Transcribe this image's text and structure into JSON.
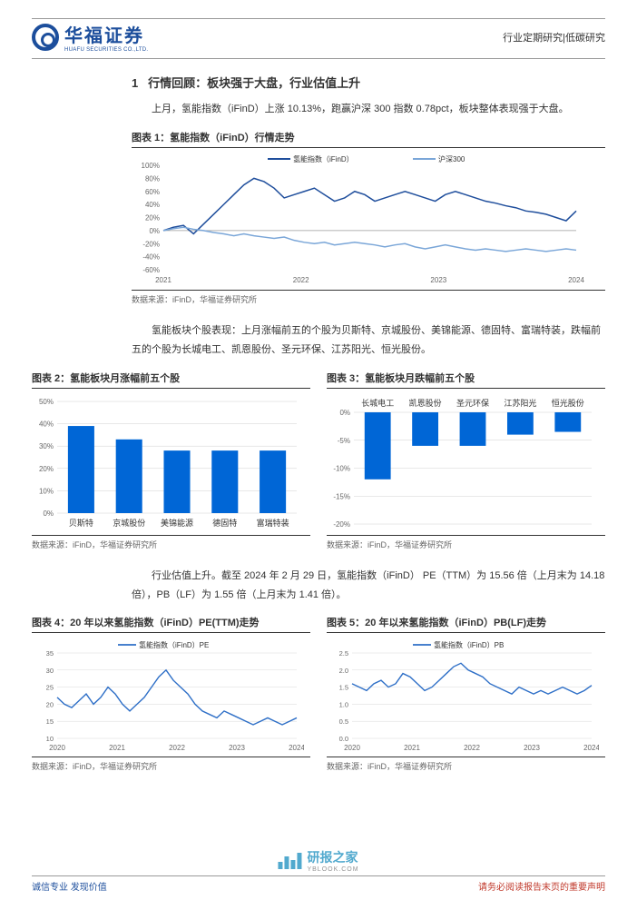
{
  "header": {
    "logo_cn": "华福证券",
    "logo_en": "HUAFU SECURITIES CO.,LTD.",
    "right": "行业定期研究|低碳研究"
  },
  "section1": {
    "number": "1",
    "title": "行情回顾：板块强于大盘，行业估值上升",
    "p1": "上月，氢能指数（iFinD）上涨 10.13%，跑赢沪深 300 指数 0.78pct，板块整体表现强于大盘。"
  },
  "fig1": {
    "title": "图表 1：氢能指数（iFinD）行情走势",
    "source": "数据来源：iFinD，华福证券研究所",
    "legend": [
      "氢能指数（iFinD）",
      "沪深300"
    ],
    "type": "line",
    "xlabels": [
      "2021",
      "2022",
      "2023",
      "2024"
    ],
    "ylim": [
      -60,
      100
    ],
    "ytick_step": 20,
    "colors": [
      "#1f4e9c",
      "#7aa6d8"
    ],
    "background_color": "#ffffff",
    "series1": [
      0,
      5,
      8,
      -5,
      10,
      25,
      40,
      55,
      70,
      80,
      75,
      65,
      50,
      55,
      60,
      65,
      55,
      45,
      50,
      60,
      55,
      45,
      50,
      55,
      60,
      55,
      50,
      45,
      55,
      60,
      55,
      50,
      45,
      42,
      38,
      35,
      30,
      28,
      25,
      20,
      15,
      30
    ],
    "series2": [
      0,
      3,
      5,
      2,
      0,
      -3,
      -5,
      -8,
      -5,
      -8,
      -10,
      -12,
      -10,
      -15,
      -18,
      -20,
      -18,
      -22,
      -20,
      -18,
      -20,
      -22,
      -25,
      -22,
      -20,
      -25,
      -28,
      -25,
      -22,
      -25,
      -28,
      -30,
      -28,
      -30,
      -32,
      -30,
      -28,
      -30,
      -32,
      -30,
      -28,
      -30
    ],
    "line_width": 1.5
  },
  "section2": {
    "p": "氢能板块个股表现：上月涨幅前五的个股为贝斯特、京城股份、美锦能源、德固特、富瑞特装，跌幅前五的个股为长城电工、凯恩股份、圣元环保、江苏阳光、恒光股份。"
  },
  "fig2": {
    "title": "图表 2：氢能板块月涨幅前五个股",
    "source": "数据来源：iFinD，华福证券研究所",
    "type": "bar",
    "categories": [
      "贝斯特",
      "京城股份",
      "美锦能源",
      "德固特",
      "富瑞特装"
    ],
    "values": [
      39,
      33,
      28,
      28,
      28
    ],
    "bar_color": "#0066d6",
    "ylim": [
      0,
      50
    ],
    "ytick_step": 10,
    "label_fontsize": 9,
    "background_color": "#ffffff",
    "grid_color": "#d0d0d0"
  },
  "fig3": {
    "title": "图表 3：氢能板块月跌幅前五个股",
    "source": "数据来源：iFinD，华福证券研究所",
    "type": "bar",
    "categories": [
      "长城电工",
      "凯恩股份",
      "圣元环保",
      "江苏阳光",
      "恒光股份"
    ],
    "values": [
      -12,
      -6,
      -6,
      -4,
      -3.5
    ],
    "bar_color": "#0066d6",
    "ylim": [
      -20,
      0
    ],
    "ytick_step": 5,
    "label_fontsize": 9,
    "background_color": "#ffffff",
    "grid_color": "#d0d0d0"
  },
  "section3": {
    "p": "行业估值上升。截至 2024 年 2 月 29 日，氢能指数（iFinD） PE（TTM）为 15.56 倍（上月末为 14.18 倍），PB（LF）为 1.55 倍（上月末为 1.41 倍）。"
  },
  "fig4": {
    "title": "图表 4：20 年以来氢能指数（iFinD）PE(TTM)走势",
    "source": "数据来源：iFinD，华福证券研究所",
    "type": "line",
    "legend": "氢能指数（iFinD）PE",
    "xlabels": [
      "2020",
      "2021",
      "2022",
      "2023",
      "2024"
    ],
    "ylim": [
      10,
      35
    ],
    "ytick_step": 5,
    "color": "#2e6fc7",
    "series": [
      22,
      20,
      19,
      21,
      23,
      20,
      22,
      25,
      23,
      20,
      18,
      20,
      22,
      25,
      28,
      30,
      27,
      25,
      23,
      20,
      18,
      17,
      16,
      18,
      17,
      16,
      15,
      14,
      15,
      16,
      15,
      14,
      15,
      16
    ],
    "background_color": "#ffffff",
    "grid_color": "#d8d8d8"
  },
  "fig5": {
    "title": "图表 5：20 年以来氢能指数（iFinD）PB(LF)走势",
    "source": "数据来源：iFinD，华福证券研究所",
    "type": "line",
    "legend": "氢能指数（iFinD）PB",
    "xlabels": [
      "2020",
      "2021",
      "2022",
      "2023",
      "2024"
    ],
    "ylim": [
      0,
      2.5
    ],
    "ytick_step": 0.5,
    "color": "#2e6fc7",
    "series": [
      1.6,
      1.5,
      1.4,
      1.6,
      1.7,
      1.5,
      1.6,
      1.9,
      1.8,
      1.6,
      1.4,
      1.5,
      1.7,
      1.9,
      2.1,
      2.2,
      2.0,
      1.9,
      1.8,
      1.6,
      1.5,
      1.4,
      1.3,
      1.5,
      1.4,
      1.3,
      1.4,
      1.3,
      1.4,
      1.5,
      1.4,
      1.3,
      1.4,
      1.55
    ],
    "background_color": "#ffffff",
    "grid_color": "#d8d8d8"
  },
  "footer": {
    "left": "诚信专业  发现价值",
    "right": "请务必阅读报告末页的重要声明"
  },
  "watermark": {
    "cn": "研报之家",
    "en": "YBLOOK.COM"
  }
}
